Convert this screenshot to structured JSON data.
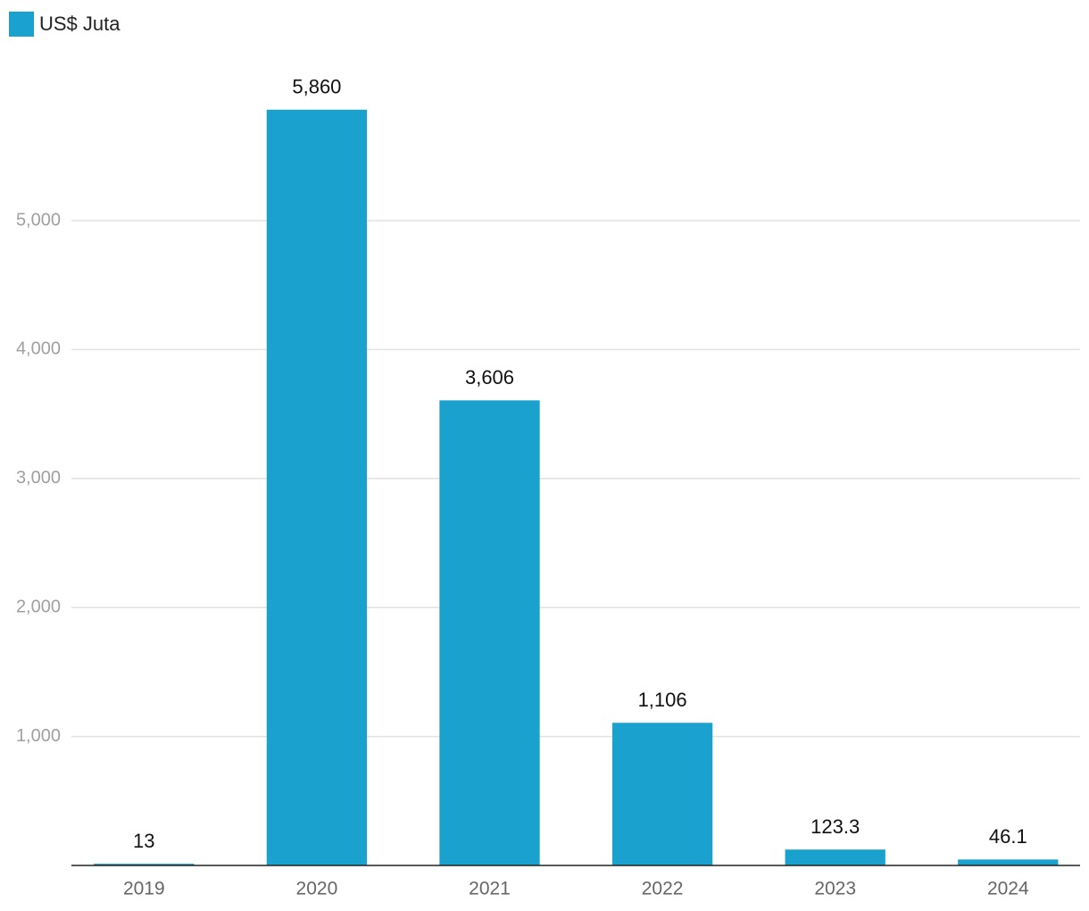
{
  "chart_data": {
    "type": "bar",
    "categories": [
      "2019",
      "2020",
      "2021",
      "2022",
      "2023",
      "2024"
    ],
    "series": [
      {
        "name": "US$ Juta",
        "color": "#1aa1ce",
        "values": [
          13,
          5860,
          3606,
          1106,
          123.3,
          46.1
        ]
      }
    ],
    "value_labels": [
      "13",
      "5,860",
      "3,606",
      "1,106",
      "123.3",
      "46.1"
    ],
    "ylim": [
      0,
      6000
    ],
    "yticks": [
      {
        "value": 1000,
        "label": "1,000"
      },
      {
        "value": 2000,
        "label": "2,000"
      },
      {
        "value": 3000,
        "label": "3,000"
      },
      {
        "value": 4000,
        "label": "4,000"
      },
      {
        "value": 5000,
        "label": "5,000"
      }
    ],
    "grid": true,
    "legend": "top-left"
  }
}
